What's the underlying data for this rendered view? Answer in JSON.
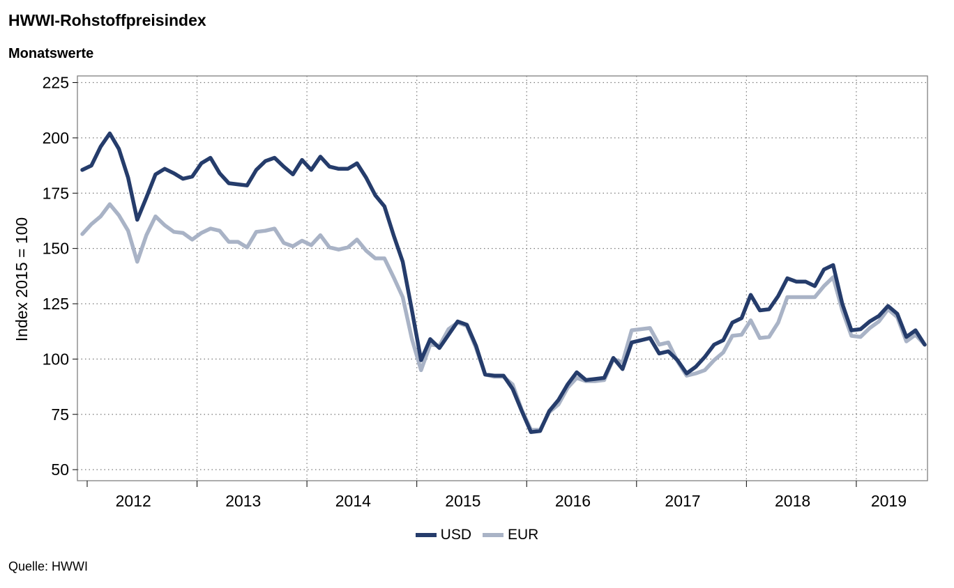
{
  "title": "HWWI-Rohstoffpreisindex",
  "subtitle": "Monatswerte",
  "source": "Quelle: HWWI",
  "colors": {
    "usd": "#253c6b",
    "eur": "#a9b3c6",
    "grid": "#777777",
    "frame": "#808080"
  },
  "chart_data": {
    "type": "line",
    "title": "",
    "ylabel": "Index 2015 = 100",
    "xlabel": "",
    "ylim": [
      45,
      228
    ],
    "yticks": [
      50,
      75,
      100,
      125,
      150,
      175,
      200,
      225
    ],
    "x_range": [
      "2012-01",
      "2019-09"
    ],
    "years": [
      "2012",
      "2013",
      "2014",
      "2015",
      "2016",
      "2017",
      "2018",
      "2019"
    ],
    "grid": true,
    "legend_position": "bottom-center",
    "x": [
      "2012-01",
      "2012-02",
      "2012-03",
      "2012-04",
      "2012-05",
      "2012-06",
      "2012-07",
      "2012-08",
      "2012-09",
      "2012-10",
      "2012-11",
      "2012-12",
      "2013-01",
      "2013-02",
      "2013-03",
      "2013-04",
      "2013-05",
      "2013-06",
      "2013-07",
      "2013-08",
      "2013-09",
      "2013-10",
      "2013-11",
      "2013-12",
      "2014-01",
      "2014-02",
      "2014-03",
      "2014-04",
      "2014-05",
      "2014-06",
      "2014-07",
      "2014-08",
      "2014-09",
      "2014-10",
      "2014-11",
      "2014-12",
      "2015-01",
      "2015-02",
      "2015-03",
      "2015-04",
      "2015-05",
      "2015-06",
      "2015-07",
      "2015-08",
      "2015-09",
      "2015-10",
      "2015-11",
      "2015-12",
      "2016-01",
      "2016-02",
      "2016-03",
      "2016-04",
      "2016-05",
      "2016-06",
      "2016-07",
      "2016-08",
      "2016-09",
      "2016-10",
      "2016-11",
      "2016-12",
      "2017-01",
      "2017-02",
      "2017-03",
      "2017-04",
      "2017-05",
      "2017-06",
      "2017-07",
      "2017-08",
      "2017-09",
      "2017-10",
      "2017-11",
      "2017-12",
      "2018-01",
      "2018-02",
      "2018-03",
      "2018-04",
      "2018-05",
      "2018-06",
      "2018-07",
      "2018-08",
      "2018-09",
      "2018-10",
      "2018-11",
      "2018-12",
      "2019-01",
      "2019-02",
      "2019-03",
      "2019-04",
      "2019-05",
      "2019-06",
      "2019-07",
      "2019-08",
      "2019-09"
    ],
    "series": [
      {
        "name": "USD",
        "values": [
          185.5,
          187.5,
          196,
          202,
          195,
          182,
          163,
          173,
          183.5,
          186,
          184,
          181.5,
          182.5,
          188.5,
          191,
          184,
          179.5,
          179,
          178.5,
          185.5,
          189.5,
          191,
          187,
          183.5,
          190,
          185.5,
          191.5,
          187,
          186,
          186,
          188.5,
          182,
          174,
          169,
          156,
          144,
          122,
          99.5,
          109,
          105,
          111,
          117,
          115.5,
          106,
          93,
          92.5,
          92.5,
          86.5,
          76.5,
          67,
          67.5,
          76.5,
          81.5,
          88.5,
          94,
          90.5,
          91,
          91.5,
          100.5,
          95.5,
          107.5,
          108.5,
          109.5,
          102.5,
          103.5,
          99.5,
          93.5,
          96.5,
          101,
          106.5,
          108.5,
          116.5,
          118.5,
          129,
          122,
          122.5,
          128.5,
          136.5,
          135,
          135,
          133,
          140.5,
          142.5,
          125,
          113,
          113.5,
          117,
          119.5,
          124,
          120.5,
          110,
          113,
          106.5
        ]
      },
      {
        "name": "EUR",
        "values": [
          156.5,
          161,
          164.5,
          170,
          165,
          158,
          144,
          156,
          164.5,
          160.5,
          157.5,
          157,
          154,
          157,
          159,
          158,
          153,
          153,
          150.5,
          157.5,
          158,
          159,
          152.5,
          151,
          153.5,
          151.5,
          156,
          150.5,
          149.5,
          150.5,
          154,
          149,
          145.5,
          145.5,
          137,
          128,
          109,
          95,
          106.5,
          106,
          113.5,
          116.5,
          115,
          105,
          93,
          92,
          92,
          88.5,
          77,
          68,
          68,
          76,
          79.5,
          87,
          91.5,
          90,
          90,
          90.5,
          100,
          98.5,
          113,
          113.5,
          114,
          106.5,
          107.5,
          99,
          92.5,
          93.5,
          95,
          99.5,
          103,
          110.5,
          111,
          117.5,
          109.5,
          110,
          116.5,
          128,
          128,
          128,
          128,
          133,
          137,
          122,
          110.5,
          110,
          114,
          117,
          122.5,
          119,
          108,
          111,
          106.5
        ]
      }
    ]
  }
}
